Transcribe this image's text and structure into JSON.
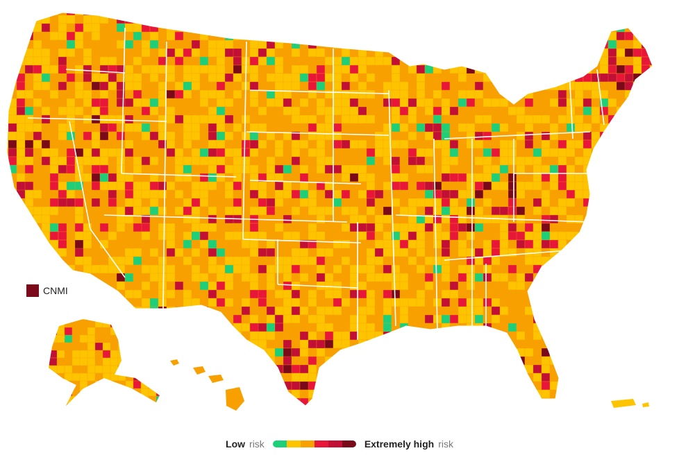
{
  "colors": {
    "low": "#1ecf7a",
    "moderate": "#ffc400",
    "orange": "#f7a000",
    "high": "#e8173a",
    "very_high": "#c10f35",
    "extreme": "#7a0a1a",
    "border": "#ffffff",
    "nodata": "#d0d0d0"
  },
  "cnmi": {
    "label": "CNMI",
    "color": "#7a0a1a"
  },
  "legend": {
    "low_bold": "Low",
    "low_suffix": "risk",
    "high_bold": "Extremely high",
    "high_suffix": "risk",
    "scale_colors": [
      "#1ecf7a",
      "#ffc400",
      "#f7a000",
      "#e8173a",
      "#c10f35",
      "#7a0a1a"
    ]
  }
}
